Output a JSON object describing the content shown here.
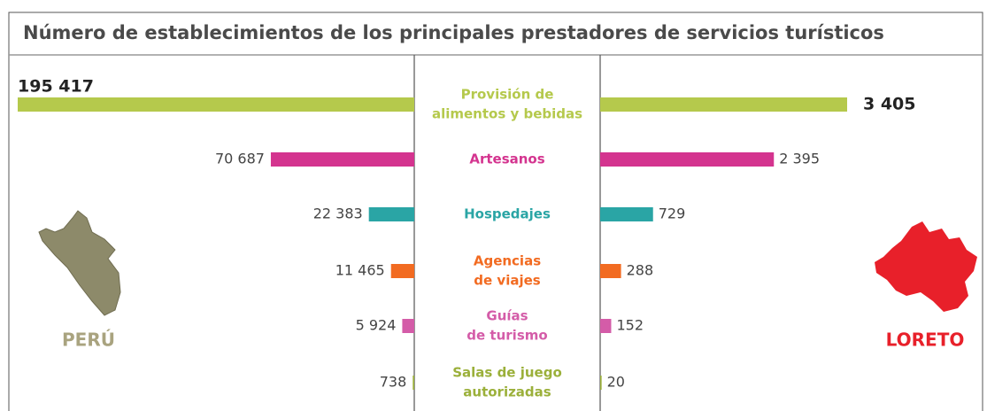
{
  "chart_data": {
    "type": "butterfly-bar",
    "title": "Número de establecimientos de los principales prestadores de servicios turísticos",
    "categories": [
      [
        "Provisión de",
        "alimentos y bebidas"
      ],
      [
        "Artesanos"
      ],
      [
        "Hospedajes"
      ],
      [
        "Agencias",
        "de viajes"
      ],
      [
        "Guías",
        "de turismo"
      ],
      [
        "Salas de juego",
        "autorizadas"
      ]
    ],
    "colors": [
      "#b5c94c",
      "#d4348f",
      "#2aa5a5",
      "#f26b21",
      "#d45ca8",
      "#9bb03a"
    ],
    "series": [
      {
        "name": "PERÚ",
        "color": "#a9a37f",
        "values": [
          195417,
          70687,
          22383,
          11465,
          5924,
          738
        ],
        "value_labels": [
          "195 417",
          "70 687",
          "22 383",
          "11 465",
          "5 924",
          "738"
        ]
      },
      {
        "name": "LORETO",
        "color": "#e8202a",
        "values": [
          3405,
          2395,
          729,
          288,
          152,
          20
        ],
        "value_labels": [
          "3 405",
          "2 395",
          "729",
          "288",
          "152",
          "20"
        ]
      }
    ]
  }
}
